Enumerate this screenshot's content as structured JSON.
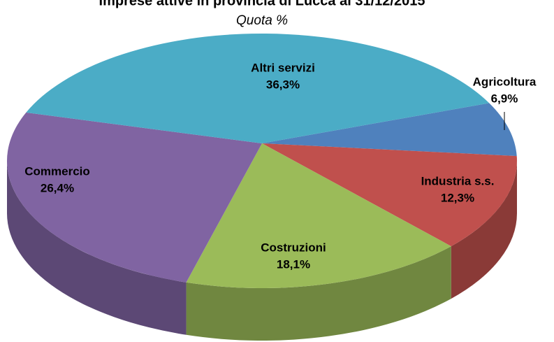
{
  "chart_data": {
    "type": "pie",
    "title": "Imprese attive in provincia di Lucca al 31/12/2015",
    "subtitle": "Quota %",
    "categories": [
      "Agricoltura",
      "Industria s.s.",
      "Costruzioni",
      "Commercio",
      "Altri servizi"
    ],
    "values": [
      6.9,
      12.3,
      18.1,
      26.4,
      36.3
    ],
    "value_labels": [
      "6,9%",
      "12,3%",
      "18,1%",
      "26,4%",
      "36,3%"
    ],
    "colors": [
      "#4f81bd",
      "#c0504d",
      "#9bbb59",
      "#8064a2",
      "#4bacc6"
    ]
  }
}
